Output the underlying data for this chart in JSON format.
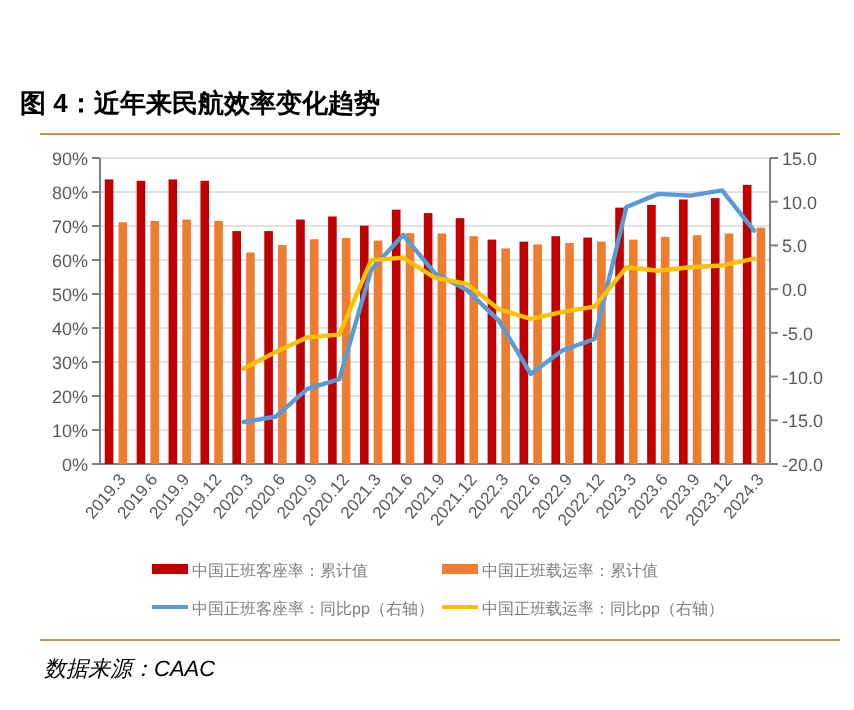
{
  "chart_data": {
    "type": "bar",
    "title": "图 4：近年来民航效率变化趋势",
    "annotations": [
      "数据来源：CAAC"
    ],
    "categories": [
      "2019.3",
      "2019.6",
      "2019.9",
      "2019.12",
      "2020.3",
      "2020.6",
      "2020.9",
      "2020.12",
      "2021.3",
      "2021.6",
      "2021.9",
      "2021.12",
      "2022.3",
      "2022.6",
      "2022.9",
      "2022.12",
      "2023.3",
      "2023.6",
      "2023.9",
      "2023.12",
      "2024.3"
    ],
    "series": [
      {
        "name": "中国正班客座率：累计值",
        "color": "#c00000",
        "values": [
          83.7,
          83.3,
          83.7,
          83.3,
          68.5,
          68.5,
          71.9,
          72.8,
          70.1,
          74.8,
          73.8,
          72.3,
          66,
          65.4,
          67,
          66.6,
          75.4,
          76.2,
          77.8,
          78.2,
          82.1
        ]
      },
      {
        "name": "中国正班载运率：累计值",
        "color": "#ed7d31",
        "values": [
          71.1,
          71.5,
          71.9,
          71.5,
          62.2,
          64.4,
          66.1,
          66.5,
          65.7,
          67.9,
          67.8,
          67,
          63.4,
          64.6,
          65,
          65.4,
          66,
          66.8,
          67.3,
          67.8,
          69.5
        ]
      },
      {
        "name": "中国正班客座率：同比pp（右轴）",
        "type": "line",
        "axis": "y2",
        "color": "#5b9bd5",
        "values": [
          null,
          null,
          null,
          null,
          -15.2,
          -14.6,
          -11.4,
          -10.3,
          2.2,
          6.2,
          1.8,
          -0.1,
          -3.6,
          -9.7,
          -7.0,
          -5.7,
          9.4,
          10.9,
          10.7,
          11.3,
          6.7
        ]
      },
      {
        "name": "中国正班载运率：同比pp（右轴）",
        "type": "line",
        "axis": "y2",
        "color": "#ffc000",
        "values": [
          null,
          null,
          null,
          null,
          -9.1,
          -7.2,
          -5.5,
          -5.2,
          3.3,
          3.6,
          1.3,
          0.6,
          -2.3,
          -3.4,
          -2.6,
          -2.0,
          2.5,
          2.1,
          2.5,
          2.7,
          3.5
        ]
      }
    ],
    "ylim": [
      0,
      90
    ],
    "yticks": [
      {
        "value": 0,
        "label": "0%"
      },
      {
        "value": 10,
        "label": "10%"
      },
      {
        "value": 20,
        "label": "20%"
      },
      {
        "value": 30,
        "label": "30%"
      },
      {
        "value": 40,
        "label": "40%"
      },
      {
        "value": 50,
        "label": "50%"
      },
      {
        "value": 60,
        "label": "60%"
      },
      {
        "value": 70,
        "label": "70%"
      },
      {
        "value": 80,
        "label": "80%"
      },
      {
        "value": 90,
        "label": "90%"
      }
    ],
    "y2lim": [
      -20,
      15
    ],
    "y2ticks": [
      {
        "value": -20,
        "label": "-20.0"
      },
      {
        "value": -15,
        "label": "-15.0"
      },
      {
        "value": -10,
        "label": "-10.0"
      },
      {
        "value": -5,
        "label": "-5.0"
      },
      {
        "value": 0,
        "label": "0.0"
      },
      {
        "value": 5,
        "label": "5.0"
      },
      {
        "value": 10,
        "label": "10.0"
      },
      {
        "value": 15,
        "label": "15.0"
      }
    ],
    "grid": "y",
    "legend": "bottom"
  }
}
